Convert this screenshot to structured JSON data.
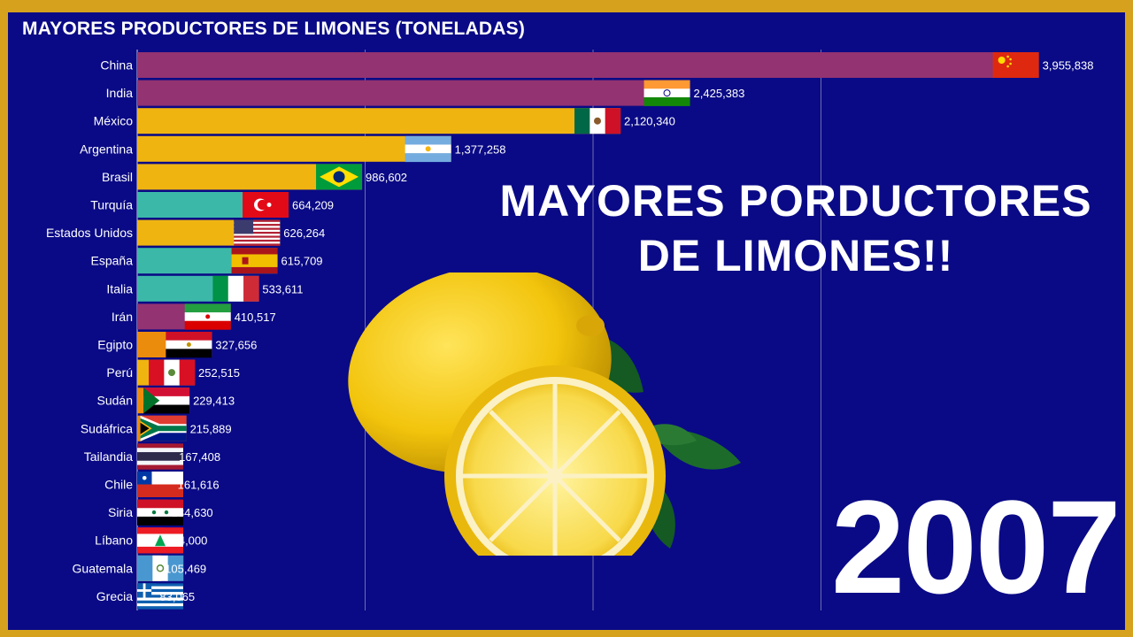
{
  "page": {
    "headline_line1": "MAYORES PORDUCTORES",
    "headline_line2": "DE LIMONES!!",
    "year": "2007"
  },
  "colors": {
    "background": "#0a0a86",
    "border": "#d6a21e",
    "purple": "#933371",
    "yellow": "#f0b411",
    "teal": "#3cb8a8",
    "orange": "#ec8c0c"
  },
  "chart_data": {
    "type": "bar",
    "orientation": "horizontal",
    "title": "MAYORES PRODUCTORES DE LIMONES (TONELADAS)",
    "grid": true,
    "categories": [
      "China",
      "India",
      "México",
      "Argentina",
      "Brasil",
      "Turquía",
      "Estados Unidos",
      "España",
      "Italia",
      "Irán",
      "Egipto",
      "Perú",
      "Sudán",
      "Sudáfrica",
      "Tailandia",
      "Chile",
      "Siria",
      "Líbano",
      "Guatemala",
      "Grecia"
    ],
    "values": [
      3955838,
      2425383,
      2120340,
      1377258,
      986602,
      664209,
      626264,
      615709,
      533611,
      410517,
      327656,
      252515,
      229413,
      215889,
      167408,
      161616,
      134630,
      114000,
      105469,
      83065
    ],
    "value_labels": [
      "3,955,838",
      "2,425,383",
      "2,120,340",
      "1,377,258",
      "986,602",
      "664,209",
      "626,264",
      "615,709",
      "533,611",
      "410,517",
      "327,656",
      "252,515",
      "229,413",
      "215,889",
      "167,408",
      "161,616",
      "134,630",
      "114,000",
      "105,469",
      "83,065"
    ],
    "bar_colors": [
      "purple",
      "purple",
      "yellow",
      "yellow",
      "yellow",
      "teal",
      "yellow",
      "teal",
      "teal",
      "purple",
      "orange",
      "yellow",
      "orange",
      "orange",
      "purple",
      "yellow",
      "purple",
      "purple",
      "yellow",
      "teal"
    ],
    "flags": [
      "china-flag",
      "india-flag",
      "mexico-flag",
      "argentina-flag",
      "brazil-flag",
      "turkey-flag",
      "usa-flag",
      "spain-flag",
      "italy-flag",
      "iran-flag",
      "egypt-flag",
      "peru-flag",
      "sudan-flag",
      "south-africa-flag",
      "thailand-flag",
      "chile-flag",
      "syria-flag",
      "lebanon-flag",
      "guatemala-flag",
      "greece-flag"
    ],
    "xlim": [
      0,
      4000000
    ],
    "gridlines": [
      1000000,
      2000000,
      3000000
    ]
  }
}
